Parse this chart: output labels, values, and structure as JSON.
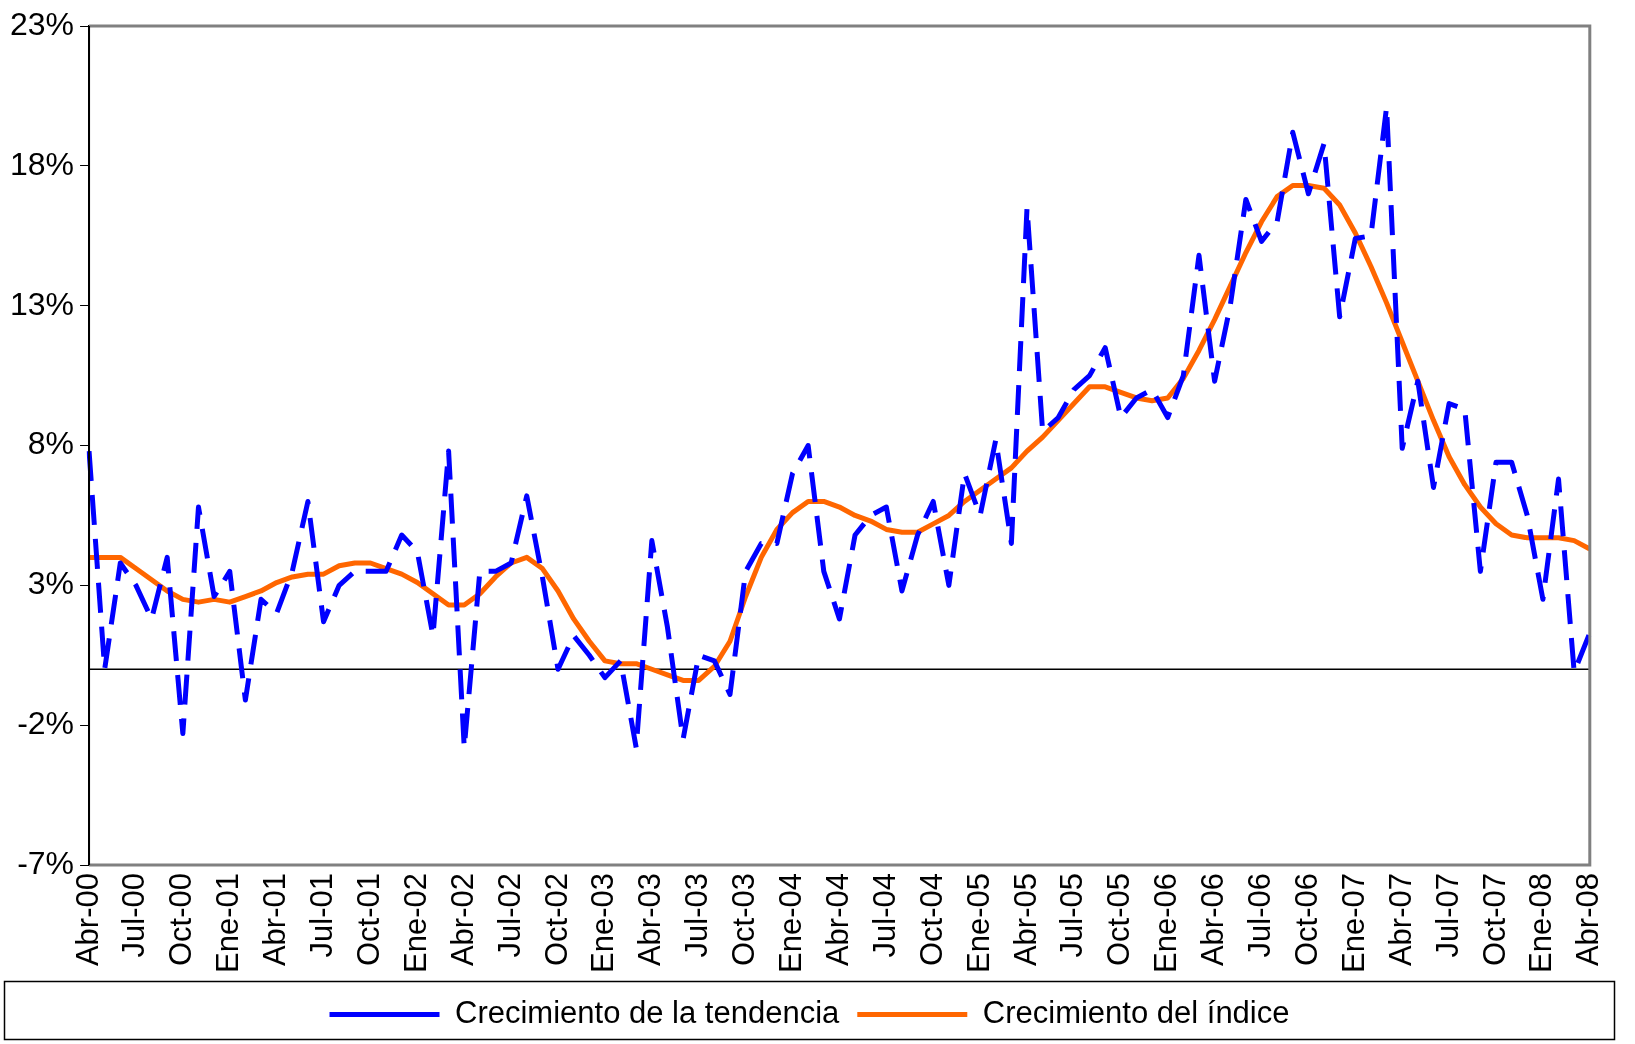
{
  "chart_data": {
    "type": "line",
    "categories": [
      "Abr-00",
      null,
      null,
      "Jul-00",
      null,
      null,
      "Oct-00",
      null,
      null,
      "Ene-01",
      null,
      null,
      "Abr-01",
      null,
      null,
      "Jul-01",
      null,
      null,
      "Oct-01",
      null,
      null,
      "Ene-02",
      null,
      null,
      "Abr-02",
      null,
      null,
      "Jul-02",
      null,
      null,
      "Oct-02",
      null,
      null,
      "Ene-03",
      null,
      null,
      "Abr-03",
      null,
      null,
      "Jul-03",
      null,
      null,
      "Oct-03",
      null,
      null,
      "Ene-04",
      null,
      null,
      "Abr-04",
      null,
      null,
      "Jul-04",
      null,
      null,
      "Oct-04",
      null,
      null,
      "Ene-05",
      null,
      null,
      "Abr-05",
      null,
      null,
      "Jul-05",
      null,
      null,
      "Oct-05",
      null,
      null,
      "Ene-06",
      null,
      null,
      "Abr-06",
      null,
      null,
      "Jul-06",
      null,
      null,
      "Oct-06",
      null,
      null,
      "Ene-07",
      null,
      null,
      "Abr-07",
      null,
      null,
      "Jul-07",
      null,
      null,
      "Oct-07",
      null,
      null,
      "Ene-08",
      null,
      null,
      "Abr-08"
    ],
    "series": [
      {
        "name": "Crecimiento de la tendencia",
        "color": "#0000ff",
        "line_style": "dashed",
        "values": [
          7.8,
          0.0,
          3.8,
          3.0,
          1.8,
          4.0,
          -2.3,
          5.8,
          2.6,
          3.5,
          -1.1,
          2.5,
          2.0,
          3.5,
          6.0,
          1.7,
          3.0,
          3.5,
          3.5,
          3.5,
          4.8,
          4.2,
          1.2,
          7.8,
          -2.8,
          3.5,
          3.5,
          3.8,
          6.2,
          3.3,
          0.0,
          1.2,
          0.5,
          -0.3,
          0.3,
          -2.8,
          4.6,
          1.5,
          -2.5,
          0.5,
          0.3,
          -0.9,
          3.5,
          4.5,
          4.5,
          7.0,
          8.0,
          3.5,
          1.8,
          4.8,
          5.5,
          5.8,
          2.8,
          4.8,
          6.0,
          3.0,
          7.0,
          5.5,
          8.2,
          4.5,
          16.5,
          8.5,
          9.0,
          10.0,
          10.5,
          11.5,
          9.0,
          9.7,
          10.0,
          9.0,
          10.5,
          14.8,
          10.3,
          13.0,
          16.8,
          15.3,
          16.0,
          19.2,
          17.0,
          18.8,
          12.6,
          15.4,
          15.5,
          20.1,
          7.9,
          10.3,
          6.5,
          9.5,
          9.3,
          3.5,
          7.4,
          7.4,
          5.5,
          2.5,
          6.8,
          -0.1,
          1.3
        ]
      },
      {
        "name": "Crecimiento del índice",
        "color": "#ff6600",
        "line_style": "solid",
        "values": [
          4.0,
          4.0,
          4.0,
          3.6,
          3.2,
          2.8,
          2.5,
          2.4,
          2.5,
          2.4,
          2.6,
          2.8,
          3.1,
          3.3,
          3.4,
          3.4,
          3.7,
          3.8,
          3.8,
          3.6,
          3.4,
          3.1,
          2.7,
          2.3,
          2.3,
          2.7,
          3.3,
          3.8,
          4.0,
          3.6,
          2.8,
          1.8,
          1.0,
          0.3,
          0.2,
          0.2,
          0.0,
          -0.2,
          -0.4,
          -0.4,
          0.1,
          1.0,
          2.6,
          4.0,
          5.0,
          5.6,
          6.0,
          6.0,
          5.8,
          5.5,
          5.3,
          5.0,
          4.9,
          4.9,
          5.2,
          5.5,
          6.0,
          6.4,
          6.8,
          7.2,
          7.8,
          8.3,
          8.9,
          9.5,
          10.1,
          10.1,
          9.9,
          9.7,
          9.6,
          9.7,
          10.4,
          11.4,
          12.5,
          13.7,
          14.9,
          16.0,
          16.9,
          17.3,
          17.3,
          17.2,
          16.6,
          15.6,
          14.4,
          13.1,
          11.7,
          10.3,
          8.9,
          7.6,
          6.6,
          5.8,
          5.2,
          4.8,
          4.7,
          4.7,
          4.7,
          4.6,
          4.3
        ]
      }
    ],
    "ylim": [
      -7,
      23
    ],
    "yticks": [
      {
        "value": -7,
        "label": "-7%"
      },
      {
        "value": -2,
        "label": "-2%"
      },
      {
        "value": 3,
        "label": "3%"
      },
      {
        "value": 8,
        "label": "8%"
      },
      {
        "value": 13,
        "label": "13%"
      },
      {
        "value": 18,
        "label": "18%"
      },
      {
        "value": 23,
        "label": "23%"
      }
    ],
    "ref_lines": [
      {
        "axis": "y",
        "value": 0,
        "color": "#000000"
      }
    ],
    "legend": "bottom"
  }
}
